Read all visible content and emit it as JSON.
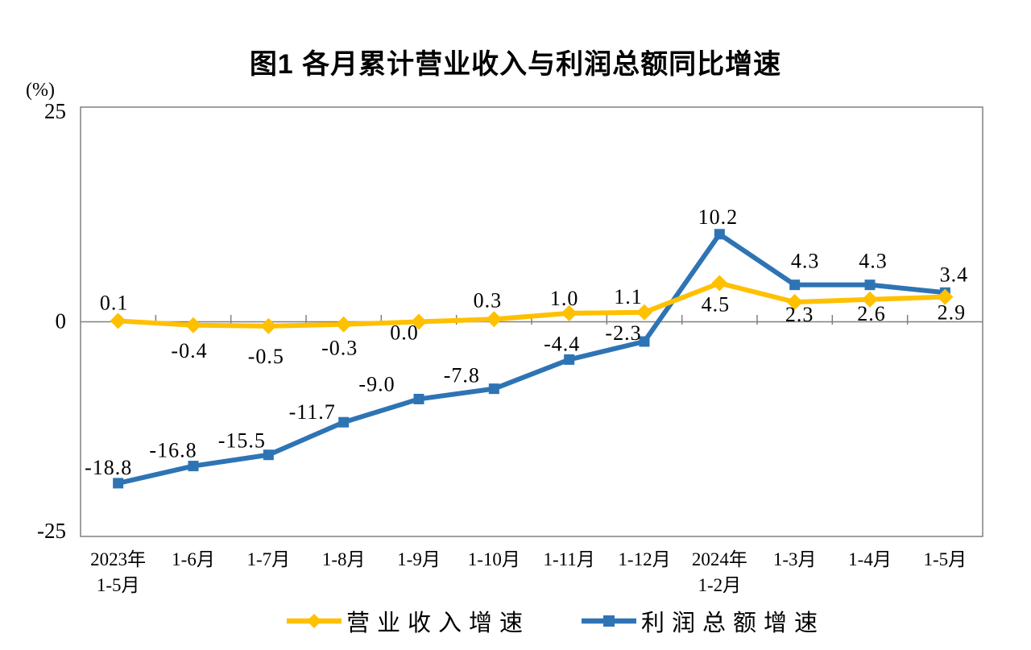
{
  "chart_data": {
    "type": "line",
    "title": "图1  各月累计营业收入与利润总额同比增速",
    "unit_label": "(%)",
    "categories": [
      [
        "2023年",
        "1-5月"
      ],
      [
        "1-6月"
      ],
      [
        "1-7月"
      ],
      [
        "1-8月"
      ],
      [
        "1-9月"
      ],
      [
        "1-10月"
      ],
      [
        "1-11月"
      ],
      [
        "1-12月"
      ],
      [
        "2024年",
        "1-2月"
      ],
      [
        "1-3月"
      ],
      [
        "1-4月"
      ],
      [
        "1-5月"
      ]
    ],
    "y_axis": {
      "min": -25,
      "max": 25,
      "ticks": [
        "25",
        "0",
        "-25"
      ],
      "tick_values": [
        25,
        0,
        -25
      ]
    },
    "axis_color": "#808080",
    "text_color": "#000000",
    "grid": "zero-line-only",
    "legend_position": "bottom",
    "series": [
      {
        "name": "营业收入增速",
        "color": "#FFC000",
        "marker": "diamond",
        "values": [
          0.1,
          -0.4,
          -0.5,
          -0.3,
          0.0,
          0.3,
          1.0,
          1.1,
          4.5,
          2.3,
          2.6,
          2.9
        ],
        "labels": [
          "0.1",
          "-0.4",
          "-0.5",
          "-0.3",
          "0.0",
          "0.3",
          "1.0",
          "1.1",
          "4.5",
          "2.3",
          "2.6",
          "2.9"
        ],
        "label_dx": [
          -5,
          -5,
          -3,
          -5,
          -18,
          -8,
          -6,
          -20,
          -5,
          6,
          2,
          8
        ],
        "label_dy": [
          -14,
          40,
          46,
          38,
          22,
          -15,
          -10,
          -11,
          35,
          24,
          26,
          28
        ]
      },
      {
        "name": "利润总额增速",
        "color": "#2E74B5",
        "marker": "square",
        "values": [
          -18.8,
          -16.8,
          -15.5,
          -11.7,
          -9.0,
          -7.8,
          -4.4,
          -2.3,
          10.2,
          4.3,
          4.3,
          3.4
        ],
        "labels": [
          "-18.8",
          "-16.8",
          "-15.5",
          "-11.7",
          "-9.0",
          "-7.8",
          "-4.4",
          "-2.3",
          "10.2",
          "4.3",
          "4.3",
          "3.4"
        ],
        "label_dx": [
          -12,
          -25,
          -33,
          -39,
          -52,
          -40,
          -9,
          -26,
          -2,
          13,
          4,
          11
        ],
        "label_dy": [
          -11,
          -11,
          -9,
          -4,
          -10,
          -8,
          -11,
          -2,
          -13,
          -21,
          -21,
          -14
        ]
      }
    ]
  }
}
